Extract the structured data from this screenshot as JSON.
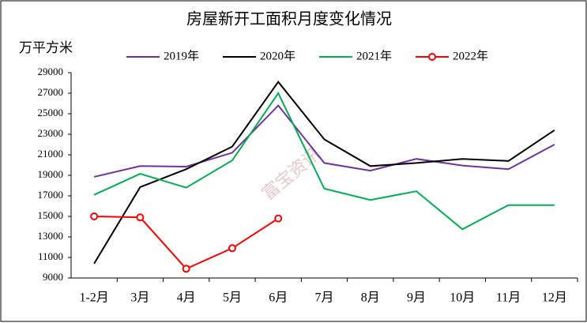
{
  "chart_data": {
    "type": "line",
    "title": "房屋新开工面积月度变化情况",
    "y_label": "万平方米",
    "watermark": "富宝资讯",
    "categories": [
      "1-2月",
      "3月",
      "4月",
      "5月",
      "6月",
      "7月",
      "8月",
      "9月",
      "10月",
      "11月",
      "12月"
    ],
    "series": [
      {
        "name": "2019年",
        "color": "#7030a0",
        "values": [
          18850,
          19900,
          19850,
          21200,
          25800,
          20200,
          19450,
          20600,
          19950,
          19600,
          22000
        ]
      },
      {
        "name": "2020年",
        "color": "#000000",
        "values": [
          10400,
          17850,
          19600,
          21800,
          28100,
          22500,
          19900,
          20200,
          20600,
          20400,
          23400
        ]
      },
      {
        "name": "2021年",
        "color": "#00b050",
        "values": [
          17100,
          19150,
          17800,
          20450,
          27000,
          17700,
          16600,
          17450,
          13750,
          16100,
          16100
        ]
      },
      {
        "name": "2022年",
        "color": "#ff0000",
        "marker": "circle",
        "values": [
          15000,
          14900,
          9900,
          11900,
          14800,
          null,
          null,
          null,
          null,
          null,
          null
        ]
      }
    ],
    "ylim": [
      9000,
      29000
    ],
    "yticks": [
      9000,
      11000,
      13000,
      15000,
      17000,
      19000,
      21000,
      23000,
      25000,
      27000,
      29000
    ],
    "grid": false,
    "legend": "top"
  }
}
